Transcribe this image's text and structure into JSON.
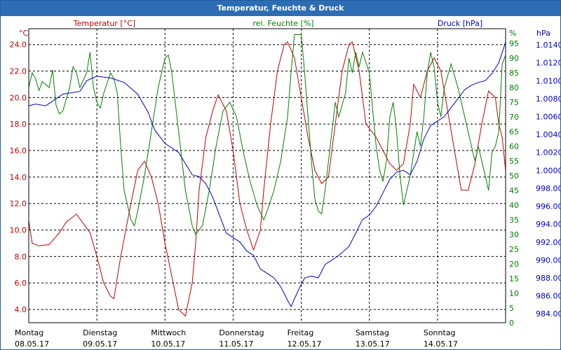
{
  "chart_data": {
    "type": "line",
    "title": "Temperatur, Feuchte & Druck",
    "axes": {
      "temperature": {
        "label": "Temperatur [°C]",
        "unit": "°C",
        "min": 3.0,
        "max": 25.2,
        "ticks": [
          4.0,
          6.0,
          8.0,
          10.0,
          12.0,
          14.0,
          16.0,
          18.0,
          20.0,
          22.0,
          24.0
        ],
        "color": "#c00000"
      },
      "humidity": {
        "label": "rel. Feuchte [%]",
        "unit": "%",
        "min": 0,
        "max": 100,
        "ticks": [
          0,
          5,
          10,
          15,
          20,
          25,
          30,
          35,
          40,
          45,
          50,
          55,
          60,
          65,
          70,
          75,
          80,
          85,
          90,
          95
        ],
        "color": "#008000"
      },
      "pressure": {
        "label": "Druck [hPa]",
        "unit": "hPa",
        "min": 983.0,
        "max": 1015.8,
        "ticks": [
          984,
          986,
          988,
          990,
          992,
          994,
          996,
          998,
          1000,
          1002,
          1004,
          1006,
          1008,
          1010,
          1012,
          1014
        ],
        "color": "#0000c0"
      }
    },
    "x_labels": [
      {
        "day": "Montag",
        "date": "08.05.17"
      },
      {
        "day": "Dienstag",
        "date": "09.05.17"
      },
      {
        "day": "Mittwoch",
        "date": "10.05.17"
      },
      {
        "day": "Donnerstag",
        "date": "11.05.17"
      },
      {
        "day": "Freitag",
        "date": "12.05.17"
      },
      {
        "day": "Samstag",
        "date": "13.05.17"
      },
      {
        "day": "Sonntag",
        "date": "14.05.17"
      }
    ],
    "x_range": [
      0,
      7
    ],
    "series": [
      {
        "name": "Temperatur",
        "axis": "temperature",
        "color": "#c00000",
        "points": [
          [
            0,
            10.7
          ],
          [
            0.05,
            9.0
          ],
          [
            0.15,
            8.8
          ],
          [
            0.3,
            8.9
          ],
          [
            0.45,
            9.8
          ],
          [
            0.55,
            10.6
          ],
          [
            0.7,
            11.2
          ],
          [
            0.8,
            10.5
          ],
          [
            0.9,
            9.8
          ],
          [
            1.0,
            8.0
          ],
          [
            1.1,
            6.0
          ],
          [
            1.2,
            5.0
          ],
          [
            1.25,
            4.8
          ],
          [
            1.35,
            8.0
          ],
          [
            1.5,
            12.0
          ],
          [
            1.6,
            14.5
          ],
          [
            1.7,
            15.2
          ],
          [
            1.8,
            14.0
          ],
          [
            1.9,
            12.0
          ],
          [
            2.0,
            9.0
          ],
          [
            2.1,
            6.5
          ],
          [
            2.2,
            4.0
          ],
          [
            2.3,
            3.5
          ],
          [
            2.4,
            6.0
          ],
          [
            2.45,
            9.0
          ],
          [
            2.5,
            13.0
          ],
          [
            2.6,
            17.0
          ],
          [
            2.7,
            19.0
          ],
          [
            2.78,
            20.2
          ],
          [
            2.9,
            19.0
          ],
          [
            3.0,
            16.0
          ],
          [
            3.1,
            12.0
          ],
          [
            3.2,
            10.0
          ],
          [
            3.3,
            8.5
          ],
          [
            3.4,
            10.0
          ],
          [
            3.45,
            13.0
          ],
          [
            3.55,
            18.0
          ],
          [
            3.65,
            22.0
          ],
          [
            3.75,
            24.0
          ],
          [
            3.8,
            24.2
          ],
          [
            3.9,
            23.0
          ],
          [
            4.0,
            20.0
          ],
          [
            4.1,
            17.0
          ],
          [
            4.2,
            14.5
          ],
          [
            4.3,
            13.5
          ],
          [
            4.4,
            14.0
          ],
          [
            4.5,
            18.0
          ],
          [
            4.6,
            22.0
          ],
          [
            4.7,
            24.0
          ],
          [
            4.75,
            24.2
          ],
          [
            4.85,
            22.0
          ],
          [
            4.95,
            18.0
          ],
          [
            5.1,
            17.0
          ],
          [
            5.2,
            16.0
          ],
          [
            5.3,
            15.0
          ],
          [
            5.4,
            14.5
          ],
          [
            5.5,
            15.0
          ],
          [
            5.6,
            18.0
          ],
          [
            5.65,
            21.0
          ],
          [
            5.75,
            20.0
          ],
          [
            5.85,
            22.0
          ],
          [
            5.95,
            23.0
          ],
          [
            6.05,
            22.0
          ],
          [
            6.15,
            19.0
          ],
          [
            6.25,
            16.0
          ],
          [
            6.35,
            13.0
          ],
          [
            6.45,
            13.0
          ],
          [
            6.55,
            15.0
          ],
          [
            6.65,
            18.0
          ],
          [
            6.75,
            20.5
          ],
          [
            6.85,
            20.0
          ],
          [
            6.9,
            18.0
          ],
          [
            6.95,
            17.0
          ],
          [
            7.0,
            14.5
          ]
        ]
      },
      {
        "name": "rel. Feuchte",
        "axis": "humidity",
        "color": "#008000",
        "points": [
          [
            0,
            80
          ],
          [
            0.05,
            85
          ],
          [
            0.1,
            83
          ],
          [
            0.15,
            79
          ],
          [
            0.2,
            82
          ],
          [
            0.3,
            80
          ],
          [
            0.35,
            86
          ],
          [
            0.4,
            74
          ],
          [
            0.45,
            71
          ],
          [
            0.5,
            72
          ],
          [
            0.6,
            80
          ],
          [
            0.65,
            87
          ],
          [
            0.7,
            85
          ],
          [
            0.75,
            80
          ],
          [
            0.85,
            85
          ],
          [
            0.9,
            92
          ],
          [
            0.95,
            80
          ],
          [
            1.0,
            75
          ],
          [
            1.05,
            73
          ],
          [
            1.1,
            78
          ],
          [
            1.2,
            85
          ],
          [
            1.25,
            83
          ],
          [
            1.3,
            78
          ],
          [
            1.35,
            60
          ],
          [
            1.4,
            45
          ],
          [
            1.5,
            35
          ],
          [
            1.55,
            33
          ],
          [
            1.6,
            38
          ],
          [
            1.7,
            50
          ],
          [
            1.8,
            65
          ],
          [
            1.9,
            80
          ],
          [
            2.0,
            90
          ],
          [
            2.05,
            91
          ],
          [
            2.1,
            85
          ],
          [
            2.2,
            65
          ],
          [
            2.3,
            45
          ],
          [
            2.4,
            33
          ],
          [
            2.45,
            30
          ],
          [
            2.55,
            33
          ],
          [
            2.65,
            45
          ],
          [
            2.75,
            60
          ],
          [
            2.85,
            72
          ],
          [
            2.95,
            75
          ],
          [
            3.05,
            70
          ],
          [
            3.15,
            58
          ],
          [
            3.25,
            48
          ],
          [
            3.35,
            40
          ],
          [
            3.45,
            35
          ],
          [
            3.5,
            38
          ],
          [
            3.6,
            45
          ],
          [
            3.7,
            55
          ],
          [
            3.8,
            70
          ],
          [
            3.85,
            85
          ],
          [
            3.9,
            98
          ],
          [
            4.0,
            98
          ],
          [
            4.05,
            85
          ],
          [
            4.1,
            70
          ],
          [
            4.15,
            55
          ],
          [
            4.2,
            42
          ],
          [
            4.25,
            38
          ],
          [
            4.3,
            37
          ],
          [
            4.35,
            45
          ],
          [
            4.45,
            65
          ],
          [
            4.5,
            75
          ],
          [
            4.55,
            70
          ],
          [
            4.65,
            78
          ],
          [
            4.7,
            90
          ],
          [
            4.75,
            85
          ],
          [
            4.8,
            92
          ],
          [
            4.85,
            87
          ],
          [
            4.9,
            92
          ],
          [
            5.0,
            85
          ],
          [
            5.05,
            72
          ],
          [
            5.1,
            60
          ],
          [
            5.15,
            52
          ],
          [
            5.2,
            48
          ],
          [
            5.25,
            55
          ],
          [
            5.3,
            70
          ],
          [
            5.35,
            75
          ],
          [
            5.4,
            65
          ],
          [
            5.45,
            50
          ],
          [
            5.5,
            40
          ],
          [
            5.6,
            50
          ],
          [
            5.7,
            65
          ],
          [
            5.75,
            60
          ],
          [
            5.8,
            70
          ],
          [
            5.85,
            85
          ],
          [
            5.9,
            92
          ],
          [
            5.95,
            87
          ],
          [
            6.0,
            75
          ],
          [
            6.05,
            70
          ],
          [
            6.1,
            80
          ],
          [
            6.2,
            88
          ],
          [
            6.3,
            80
          ],
          [
            6.4,
            70
          ],
          [
            6.5,
            60
          ],
          [
            6.55,
            55
          ],
          [
            6.6,
            60
          ],
          [
            6.7,
            50
          ],
          [
            6.75,
            45
          ],
          [
            6.8,
            58
          ],
          [
            6.85,
            60
          ],
          [
            6.9,
            65
          ],
          [
            6.95,
            88
          ],
          [
            7.0,
            91
          ]
        ]
      },
      {
        "name": "Druck",
        "axis": "pressure",
        "color": "#0000c0",
        "points": [
          [
            0,
            1007.2
          ],
          [
            0.1,
            1007.4
          ],
          [
            0.25,
            1007.2
          ],
          [
            0.5,
            1008.5
          ],
          [
            0.75,
            1008.8
          ],
          [
            0.85,
            1010.0
          ],
          [
            1.0,
            1010.5
          ],
          [
            1.2,
            1010.3
          ],
          [
            1.4,
            1009.8
          ],
          [
            1.6,
            1008.5
          ],
          [
            1.75,
            1006.5
          ],
          [
            1.85,
            1004.5
          ],
          [
            2.0,
            1003.0
          ],
          [
            2.2,
            1002.0
          ],
          [
            2.4,
            999.5
          ],
          [
            2.5,
            999.3
          ],
          [
            2.6,
            998.5
          ],
          [
            2.7,
            997.0
          ],
          [
            2.8,
            995.0
          ],
          [
            2.9,
            993.0
          ],
          [
            3.0,
            992.5
          ],
          [
            3.1,
            992.0
          ],
          [
            3.2,
            991.0
          ],
          [
            3.3,
            990.5
          ],
          [
            3.4,
            989.0
          ],
          [
            3.5,
            988.5
          ],
          [
            3.6,
            988.0
          ],
          [
            3.7,
            987.0
          ],
          [
            3.8,
            985.5
          ],
          [
            3.85,
            984.8
          ],
          [
            3.95,
            986.5
          ],
          [
            4.05,
            988.0
          ],
          [
            4.15,
            988.2
          ],
          [
            4.25,
            988.0
          ],
          [
            4.35,
            989.5
          ],
          [
            4.45,
            990.0
          ],
          [
            4.55,
            990.5
          ],
          [
            4.7,
            991.5
          ],
          [
            4.8,
            993.0
          ],
          [
            4.9,
            994.5
          ],
          [
            5.0,
            995.0
          ],
          [
            5.1,
            996.0
          ],
          [
            5.2,
            997.5
          ],
          [
            5.3,
            999.0
          ],
          [
            5.4,
            999.8
          ],
          [
            5.5,
            1000.0
          ],
          [
            5.6,
            999.5
          ],
          [
            5.7,
            1001.0
          ],
          [
            5.8,
            1003.5
          ],
          [
            5.9,
            1005.0
          ],
          [
            6.0,
            1005.5
          ],
          [
            6.1,
            1006.0
          ],
          [
            6.2,
            1007.0
          ],
          [
            6.3,
            1008.0
          ],
          [
            6.4,
            1009.0
          ],
          [
            6.5,
            1009.5
          ],
          [
            6.6,
            1009.8
          ],
          [
            6.7,
            1010.0
          ],
          [
            6.8,
            1010.8
          ],
          [
            6.9,
            1012.0
          ],
          [
            7.0,
            1014.3
          ]
        ]
      }
    ]
  }
}
